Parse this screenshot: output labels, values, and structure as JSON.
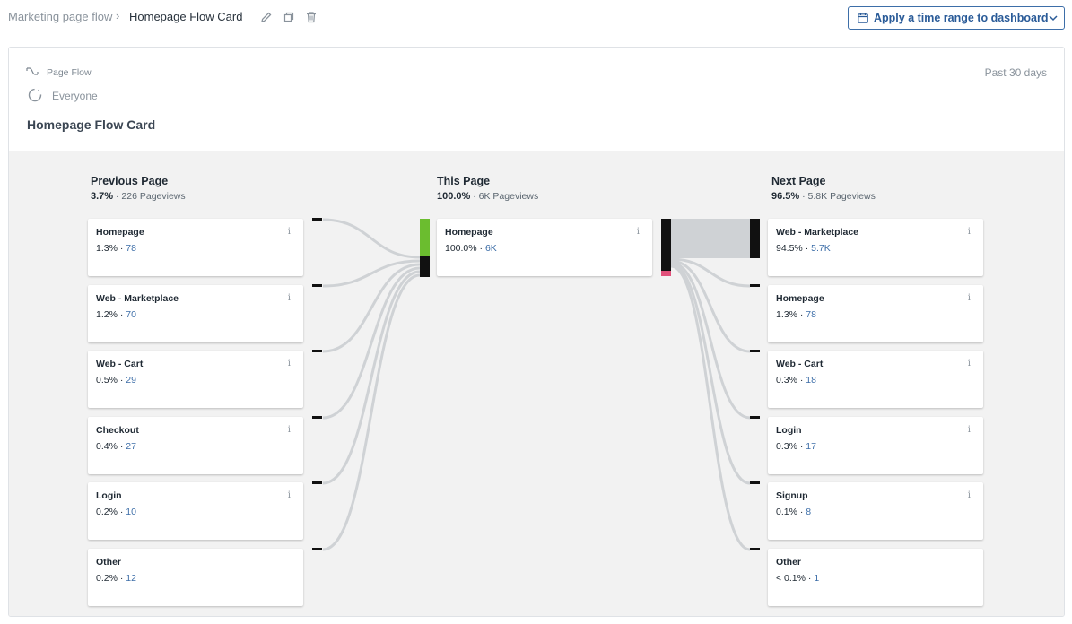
{
  "breadcrumb": {
    "parent": "Marketing page flow",
    "separator": "›",
    "current": "Homepage Flow Card"
  },
  "toolbar": {
    "icons": [
      "edit-icon",
      "copy-icon",
      "trash-icon"
    ],
    "time_range_button": "Apply a time range to dashboard"
  },
  "card": {
    "type_label": "Page Flow",
    "segment": "Everyone",
    "range": "Past 30 days",
    "title": "Homepage Flow Card"
  },
  "columns": {
    "previous": {
      "title": "Previous Page",
      "pct": "3.7%",
      "views": "226 Pageviews"
    },
    "current": {
      "title": "This Page",
      "pct": "100.0%",
      "views": "6K Pageviews"
    },
    "next": {
      "title": "Next Page",
      "pct": "96.5%",
      "views": "5.8K Pageviews"
    }
  },
  "previous_nodes": [
    {
      "name": "Homepage",
      "pct": "1.3%",
      "count": "78"
    },
    {
      "name": "Web - Marketplace",
      "pct": "1.2%",
      "count": "70"
    },
    {
      "name": "Web - Cart",
      "pct": "0.5%",
      "count": "29"
    },
    {
      "name": "Checkout",
      "pct": "0.4%",
      "count": "27"
    },
    {
      "name": "Login",
      "pct": "0.2%",
      "count": "10"
    },
    {
      "name": "Other",
      "pct": "0.2%",
      "count": "12"
    }
  ],
  "current_node": {
    "name": "Homepage",
    "pct": "100.0%",
    "count": "6K"
  },
  "next_nodes": [
    {
      "name": "Web - Marketplace",
      "pct": "94.5%",
      "count": "5.7K"
    },
    {
      "name": "Homepage",
      "pct": "1.3%",
      "count": "78"
    },
    {
      "name": "Web - Cart",
      "pct": "0.3%",
      "count": "18"
    },
    {
      "name": "Login",
      "pct": "0.3%",
      "count": "17"
    },
    {
      "name": "Signup",
      "pct": "0.1%",
      "count": "8"
    },
    {
      "name": "Other",
      "pct": "< 0.1%",
      "count": "1"
    }
  ],
  "info_glyph": "i",
  "stat_separator": " · ",
  "colors": {
    "accent": "#2a5b98",
    "entry_bar": "#6bbd2f",
    "exit_bar": "#e0507a",
    "node_bar": "#111111",
    "link": "#cfd2d5",
    "flow_bg": "#f2f2f2"
  }
}
